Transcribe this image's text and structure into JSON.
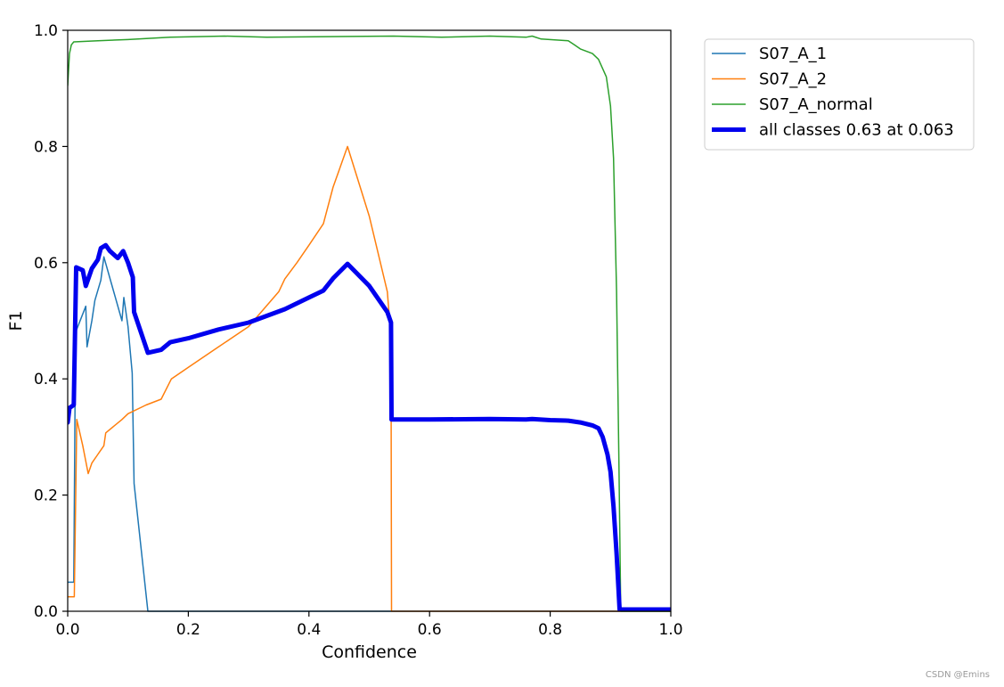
{
  "chart_data": {
    "type": "line",
    "xlabel": "Confidence",
    "ylabel": "F1",
    "xlim": [
      0,
      1
    ],
    "ylim": [
      0,
      1
    ],
    "xticks": [
      "0.0",
      "0.2",
      "0.4",
      "0.6",
      "0.8",
      "1.0"
    ],
    "yticks": [
      "0.0",
      "0.2",
      "0.4",
      "0.6",
      "0.8",
      "1.0"
    ],
    "grid": false,
    "legend_position": "outside top-right",
    "series": [
      {
        "name": "S07_A_1",
        "color": "#1f77b4",
        "width": "thin",
        "points": [
          [
            0,
            0.05
          ],
          [
            0.01,
            0.05
          ],
          [
            0.013,
            0.48
          ],
          [
            0.03,
            0.525
          ],
          [
            0.032,
            0.455
          ],
          [
            0.04,
            0.5
          ],
          [
            0.045,
            0.535
          ],
          [
            0.055,
            0.57
          ],
          [
            0.06,
            0.61
          ],
          [
            0.09,
            0.5
          ],
          [
            0.093,
            0.54
          ],
          [
            0.1,
            0.49
          ],
          [
            0.107,
            0.41
          ],
          [
            0.11,
            0.22
          ],
          [
            0.133,
            0.0
          ],
          [
            1.0,
            0.0
          ]
        ]
      },
      {
        "name": "S07_A_2",
        "color": "#ff7f0e",
        "width": "thin",
        "points": [
          [
            0,
            0.025
          ],
          [
            0.011,
            0.025
          ],
          [
            0.015,
            0.33
          ],
          [
            0.025,
            0.285
          ],
          [
            0.034,
            0.237
          ],
          [
            0.04,
            0.255
          ],
          [
            0.05,
            0.27
          ],
          [
            0.06,
            0.285
          ],
          [
            0.063,
            0.307
          ],
          [
            0.09,
            0.33
          ],
          [
            0.1,
            0.34
          ],
          [
            0.13,
            0.355
          ],
          [
            0.155,
            0.365
          ],
          [
            0.172,
            0.4
          ],
          [
            0.2,
            0.42
          ],
          [
            0.25,
            0.455
          ],
          [
            0.3,
            0.49
          ],
          [
            0.35,
            0.55
          ],
          [
            0.36,
            0.572
          ],
          [
            0.38,
            0.6
          ],
          [
            0.4,
            0.63
          ],
          [
            0.424,
            0.667
          ],
          [
            0.44,
            0.73
          ],
          [
            0.464,
            0.8
          ],
          [
            0.5,
            0.68
          ],
          [
            0.53,
            0.55
          ],
          [
            0.536,
            0.47
          ],
          [
            0.537,
            0.0
          ],
          [
            1.0,
            0.0
          ]
        ]
      },
      {
        "name": "S07_A_normal",
        "color": "#2ca02c",
        "width": "thin",
        "points": [
          [
            0,
            0.905
          ],
          [
            0.003,
            0.96
          ],
          [
            0.006,
            0.975
          ],
          [
            0.01,
            0.98
          ],
          [
            0.05,
            0.982
          ],
          [
            0.1,
            0.984
          ],
          [
            0.17,
            0.988
          ],
          [
            0.26,
            0.99
          ],
          [
            0.33,
            0.988
          ],
          [
            0.54,
            0.99
          ],
          [
            0.62,
            0.988
          ],
          [
            0.7,
            0.99
          ],
          [
            0.76,
            0.988
          ],
          [
            0.77,
            0.99
          ],
          [
            0.785,
            0.985
          ],
          [
            0.83,
            0.982
          ],
          [
            0.84,
            0.975
          ],
          [
            0.85,
            0.968
          ],
          [
            0.87,
            0.96
          ],
          [
            0.88,
            0.95
          ],
          [
            0.893,
            0.92
          ],
          [
            0.9,
            0.87
          ],
          [
            0.905,
            0.78
          ],
          [
            0.91,
            0.55
          ],
          [
            0.914,
            0.25
          ],
          [
            0.917,
            0.0
          ],
          [
            1.0,
            0.0
          ]
        ]
      },
      {
        "name": "all classes 0.63 at 0.063",
        "color": "#0000ee",
        "width": "thick",
        "points": [
          [
            0,
            0.325
          ],
          [
            0.003,
            0.35
          ],
          [
            0.01,
            0.355
          ],
          [
            0.014,
            0.592
          ],
          [
            0.025,
            0.587
          ],
          [
            0.03,
            0.56
          ],
          [
            0.04,
            0.59
          ],
          [
            0.05,
            0.605
          ],
          [
            0.055,
            0.625
          ],
          [
            0.063,
            0.63
          ],
          [
            0.07,
            0.62
          ],
          [
            0.083,
            0.608
          ],
          [
            0.092,
            0.62
          ],
          [
            0.1,
            0.6
          ],
          [
            0.108,
            0.575
          ],
          [
            0.11,
            0.515
          ],
          [
            0.133,
            0.445
          ],
          [
            0.155,
            0.45
          ],
          [
            0.17,
            0.463
          ],
          [
            0.2,
            0.47
          ],
          [
            0.25,
            0.485
          ],
          [
            0.3,
            0.497
          ],
          [
            0.36,
            0.52
          ],
          [
            0.4,
            0.54
          ],
          [
            0.424,
            0.552
          ],
          [
            0.44,
            0.573
          ],
          [
            0.464,
            0.598
          ],
          [
            0.5,
            0.56
          ],
          [
            0.53,
            0.515
          ],
          [
            0.536,
            0.497
          ],
          [
            0.537,
            0.33
          ],
          [
            0.6,
            0.33
          ],
          [
            0.7,
            0.331
          ],
          [
            0.76,
            0.33
          ],
          [
            0.77,
            0.331
          ],
          [
            0.8,
            0.329
          ],
          [
            0.83,
            0.328
          ],
          [
            0.85,
            0.325
          ],
          [
            0.87,
            0.32
          ],
          [
            0.88,
            0.315
          ],
          [
            0.887,
            0.3
          ],
          [
            0.895,
            0.27
          ],
          [
            0.9,
            0.24
          ],
          [
            0.905,
            0.18
          ],
          [
            0.91,
            0.1
          ],
          [
            0.915,
            0.003
          ],
          [
            1.0,
            0.003
          ]
        ]
      }
    ]
  },
  "watermark": "CSDN @Emins"
}
